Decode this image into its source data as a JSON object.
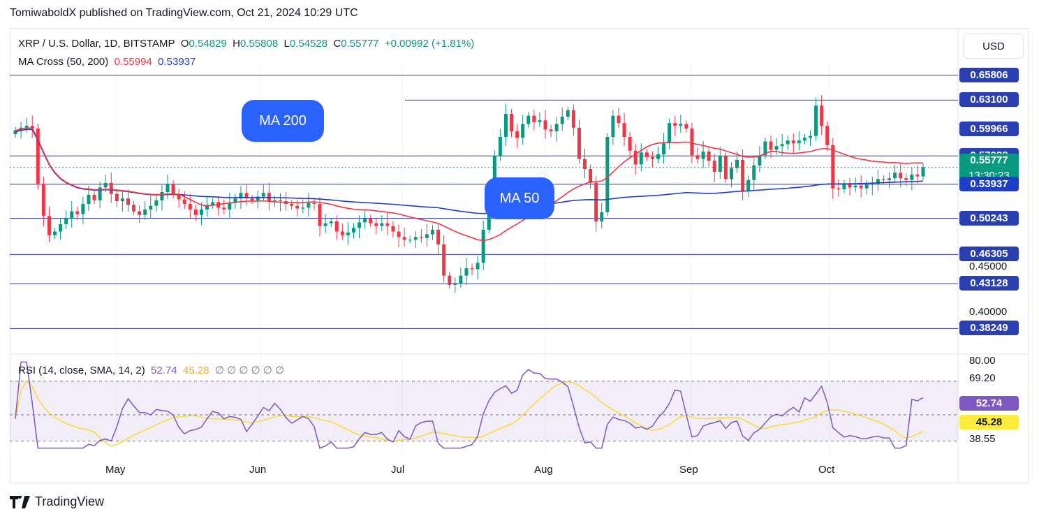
{
  "publisher": "TomiwaboldX published on TradingView.com, Oct 21, 2024 10:29 UTC",
  "currency_button": "USD",
  "brand": "TradingView",
  "legend": {
    "symbol": "XRP / U.S. Dollar, 1D, BITSTAMP",
    "o_label": "O",
    "o": "0.54829",
    "h_label": "H",
    "h": "0.55808",
    "l_label": "L",
    "l": "0.54528",
    "c_label": "C",
    "c": "0.55777",
    "change": "+0.00992 (+1.81%)",
    "ma_label": "MA Cross (50, 200)",
    "ma50": "0.55994",
    "ma200": "0.53937",
    "rsi_label": "RSI (14, close, SMA, 14, 2)",
    "rsi": "52.74",
    "rsi_sma": "45.28",
    "rsi_extra": "∅ ∅ ∅ ∅ ∅ ∅"
  },
  "callouts": {
    "ma200": "MA 200",
    "ma50": "MA 50"
  },
  "colors": {
    "up": "#089981",
    "down": "#f23645",
    "ma50": "#f23645",
    "ma200": "#1e3ec7",
    "hline": "#2a3fb1",
    "rsi": "#7e57c2",
    "rsi_sma": "#fdd835",
    "price_tag": "#089981"
  },
  "countdown": "13:30:23",
  "chart_data": {
    "type": "candlestick",
    "x_labels": [
      "May",
      "Jun",
      "Jul",
      "Aug",
      "Sep",
      "Oct"
    ],
    "y_ticks": [
      "0.65806",
      "0.63100",
      "0.59966",
      "0.57028",
      "0.55994",
      "0.55777",
      "0.53937",
      "0.50243",
      "0.46305",
      "0.45000",
      "0.43128",
      "0.40000",
      "0.38249"
    ],
    "horizontal_levels": [
      0.65806,
      0.631,
      0.57028,
      0.53937,
      0.50243,
      0.46305,
      0.43128,
      0.38249
    ],
    "ylim": [
      0.36,
      0.67
    ],
    "rsi_ticks": [
      "80.00",
      "69.20",
      "52.74",
      "45.28",
      "38.55"
    ],
    "rsi_levels": [
      69.2,
      52.0,
      38.55
    ],
    "rsi_ylim": [
      32,
      82
    ],
    "closes": [
      0.598,
      0.601,
      0.603,
      0.6,
      0.54,
      0.505,
      0.484,
      0.488,
      0.496,
      0.502,
      0.51,
      0.507,
      0.518,
      0.528,
      0.522,
      0.536,
      0.541,
      0.529,
      0.521,
      0.524,
      0.517,
      0.51,
      0.506,
      0.512,
      0.516,
      0.522,
      0.531,
      0.54,
      0.528,
      0.523,
      0.518,
      0.512,
      0.506,
      0.512,
      0.517,
      0.52,
      0.514,
      0.512,
      0.519,
      0.524,
      0.53,
      0.524,
      0.522,
      0.526,
      0.53,
      0.521,
      0.522,
      0.521,
      0.518,
      0.516,
      0.513,
      0.514,
      0.519,
      0.518,
      0.494,
      0.497,
      0.499,
      0.488,
      0.484,
      0.487,
      0.492,
      0.498,
      0.502,
      0.497,
      0.494,
      0.497,
      0.494,
      0.488,
      0.482,
      0.479,
      0.479,
      0.482,
      0.481,
      0.485,
      0.49,
      0.474,
      0.44,
      0.43,
      0.432,
      0.44,
      0.448,
      0.447,
      0.454,
      0.49,
      0.528,
      0.57,
      0.591,
      0.616,
      0.597,
      0.59,
      0.605,
      0.614,
      0.607,
      0.609,
      0.599,
      0.597,
      0.605,
      0.613,
      0.62,
      0.601,
      0.567,
      0.556,
      0.541,
      0.499,
      0.509,
      0.591,
      0.614,
      0.606,
      0.591,
      0.576,
      0.561,
      0.574,
      0.569,
      0.567,
      0.572,
      0.584,
      0.606,
      0.603,
      0.605,
      0.6,
      0.571,
      0.567,
      0.575,
      0.565,
      0.553,
      0.57,
      0.545,
      0.557,
      0.566,
      0.532,
      0.544,
      0.56,
      0.571,
      0.586,
      0.577,
      0.581,
      0.583,
      0.587,
      0.584,
      0.587,
      0.59,
      0.592,
      0.625,
      0.603,
      0.582,
      0.535,
      0.534,
      0.54,
      0.536,
      0.538,
      0.535,
      0.539,
      0.54,
      0.545,
      0.544,
      0.546,
      0.552,
      0.546,
      0.544,
      0.55,
      0.548,
      0.558
    ]
  }
}
